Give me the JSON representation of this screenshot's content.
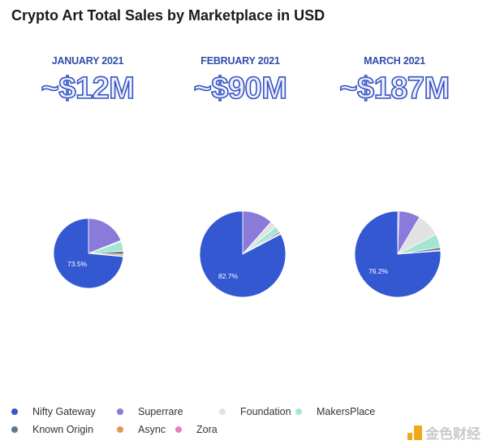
{
  "chart_data": {
    "type": "pie",
    "title": "Crypto Art Total Sales by Marketplace in USD",
    "legend_position": "bottom",
    "series_names": [
      "Nifty Gateway",
      "Superrare",
      "Foundation",
      "MakersPlace",
      "Known Origin",
      "Async",
      "Zora"
    ],
    "colors": [
      "#3358d1",
      "#8a7ad9",
      "#e2e2e2",
      "#a4e6d2",
      "#5f7a8c",
      "#e09a4e",
      "#e87fc0"
    ],
    "pies": [
      {
        "month": "JANUARY 2021",
        "total": "~$12M",
        "label": "73.5%",
        "values": [
          73.5,
          19.0,
          0.5,
          4.5,
          1.5,
          0.8,
          0.2
        ]
      },
      {
        "month": "FEBRUARY 2021",
        "total": "~$90M",
        "label": "82.7%",
        "values": [
          82.7,
          11.5,
          2.5,
          2.3,
          0.6,
          0.3,
          0.1
        ]
      },
      {
        "month": "MARCH 2021",
        "total": "~$187M",
        "label": "76.2%",
        "values": [
          76.2,
          8.0,
          9.0,
          5.0,
          1.0,
          0.3,
          0.5
        ]
      }
    ]
  },
  "watermark": "金色财经"
}
